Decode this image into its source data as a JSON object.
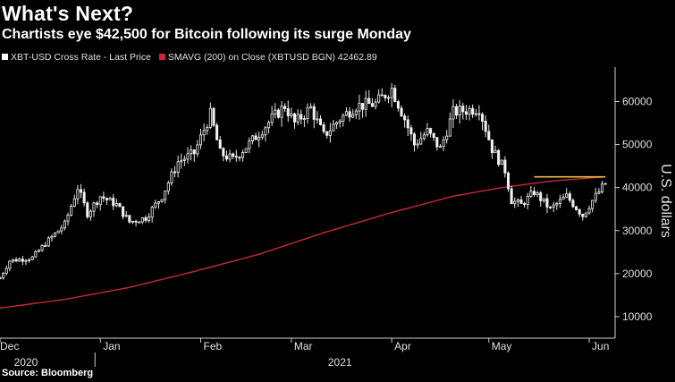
{
  "header": {
    "title": "What's Next?",
    "subtitle": "Chartists eye $42,500 for Bitcoin following its surge Monday"
  },
  "legend": {
    "price_label": "XBT-USD Cross Rate - Last Price",
    "sma_label": "SMAVG (200)  on Close (XBTUSD BGN)  42462.89",
    "price_color": "#ffffff",
    "sma_color": "#c8283c"
  },
  "source": "Source: Bloomberg",
  "chart_data": {
    "type": "candlestick",
    "title": "What's Next?",
    "subtitle": "Chartists eye $42,500 for Bitcoin following its surge Monday",
    "ylabel": "U.S. dollars",
    "ylim": [
      5000,
      68000
    ],
    "yticks": [
      10000,
      20000,
      30000,
      40000,
      50000,
      60000
    ],
    "ytick_labels": [
      "10000",
      "20000",
      "30000",
      "40000",
      "50000",
      "60000"
    ],
    "xlim": [
      0,
      190
    ],
    "xticks": [
      {
        "day": 0,
        "label": "Dec"
      },
      {
        "day": 31,
        "label": "Jan"
      },
      {
        "day": 62,
        "label": "Feb"
      },
      {
        "day": 90,
        "label": "Mar"
      },
      {
        "day": 121,
        "label": "Apr"
      },
      {
        "day": 151,
        "label": "May"
      },
      {
        "day": 182,
        "label": "Jun"
      }
    ],
    "year_labels": [
      {
        "day": 8,
        "label": "2020"
      },
      {
        "day": 105,
        "label": "2021"
      }
    ],
    "series": [
      {
        "name": "XBT-USD Cross Rate - Last Price",
        "key_points": [
          [
            0,
            19000
          ],
          [
            3,
            23000
          ],
          [
            10,
            23700
          ],
          [
            14,
            27000
          ],
          [
            20,
            31500
          ],
          [
            24,
            40000
          ],
          [
            27,
            34000
          ],
          [
            31,
            38000
          ],
          [
            36,
            36000
          ],
          [
            40,
            32000
          ],
          [
            45,
            33000
          ],
          [
            50,
            38000
          ],
          [
            55,
            46000
          ],
          [
            60,
            48000
          ],
          [
            65,
            57000
          ],
          [
            68,
            48000
          ],
          [
            72,
            46500
          ],
          [
            78,
            51000
          ],
          [
            84,
            56000
          ],
          [
            88,
            59000
          ],
          [
            91,
            55000
          ],
          [
            96,
            58500
          ],
          [
            100,
            52000
          ],
          [
            105,
            56000
          ],
          [
            110,
            59000
          ],
          [
            116,
            59500
          ],
          [
            121,
            63000
          ],
          [
            125,
            56000
          ],
          [
            128,
            50000
          ],
          [
            132,
            53000
          ],
          [
            136,
            49000
          ],
          [
            140,
            57500
          ],
          [
            144,
            58000
          ],
          [
            148,
            58500
          ],
          [
            152,
            49000
          ],
          [
            156,
            44000
          ],
          [
            158,
            37000
          ],
          [
            161,
            36000
          ],
          [
            165,
            39000
          ],
          [
            170,
            35000
          ],
          [
            175,
            38000
          ],
          [
            180,
            33500
          ],
          [
            183,
            37000
          ],
          [
            187,
            41000
          ]
        ]
      },
      {
        "name": "SMAVG (200) on Close",
        "key_points": [
          [
            0,
            12000
          ],
          [
            20,
            14000
          ],
          [
            40,
            16800
          ],
          [
            60,
            20500
          ],
          [
            80,
            24500
          ],
          [
            100,
            29500
          ],
          [
            120,
            34000
          ],
          [
            140,
            38000
          ],
          [
            155,
            40000
          ],
          [
            170,
            41500
          ],
          [
            187,
            42500
          ]
        ]
      }
    ],
    "annotations": [
      {
        "type": "horizontal_line",
        "y": 42500,
        "x_start": 165,
        "x_end": 187,
        "color": "#e8c43a"
      }
    ]
  }
}
